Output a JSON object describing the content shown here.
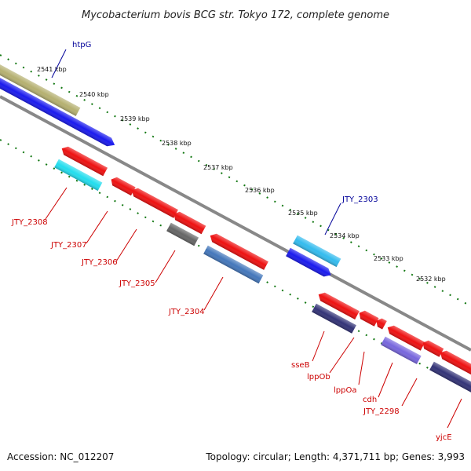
{
  "title": "Mycobacterium bovis BCG str. Tokyo 172, complete genome",
  "footer": {
    "accession": "Accession: NC_012207",
    "topology": "Topology: circular; Length: 4,371,711 bp; Genes: 3,993"
  },
  "ticks": [
    "2541 kbp",
    "2540 kbp",
    "2539 kbp",
    "2538 kbp",
    "2537 kbp",
    "2536 kbp",
    "2535 kbp",
    "2534 kbp",
    "2533 kbp",
    "2532 kbp"
  ],
  "labels": {
    "htpG": "htpG",
    "JTY_2303": "JTY_2303",
    "JTY_2308": "JTY_2308",
    "JTY_2307": "JTY_2307",
    "JTY_2306": "JTY_2306",
    "JTY_2305": "JTY_2305",
    "JTY_2304": "JTY_2304",
    "sseB": "sseB",
    "lppOb": "lppOb",
    "lppOa": "lppOa",
    "cdh": "cdh",
    "JTY_2298": "JTY_2298",
    "yjcE": "yjcE"
  },
  "colors": {
    "red": "#ee1111",
    "blue": "#1a1aee",
    "cyan": "#22ddee",
    "lightblue": "#33bbee",
    "steelblue": "#4477bb",
    "navy": "#333377",
    "slate": "#7766dd",
    "gray": "#666666",
    "olive": "#b5b070",
    "tick_green": "#117711",
    "backbone": "#888888",
    "label_red": "#cc0000",
    "label_blue": "#000099"
  }
}
